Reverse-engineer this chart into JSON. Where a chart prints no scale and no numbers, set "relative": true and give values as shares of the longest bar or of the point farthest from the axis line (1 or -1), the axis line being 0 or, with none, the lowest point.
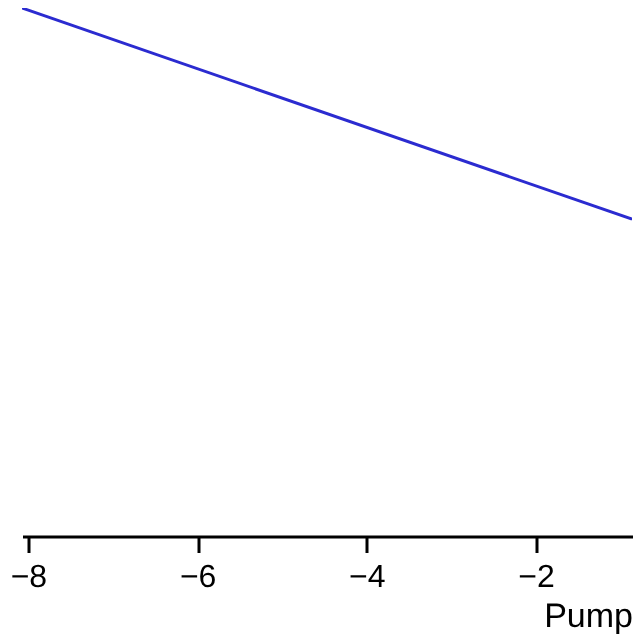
{
  "chart_data": {
    "type": "line",
    "relative": true,
    "xlabel": "Pump",
    "x": [
      -8.07,
      -0.86
    ],
    "series": [
      {
        "color": "#2b2bd0",
        "values": [
          1,
          0.6
        ]
      }
    ],
    "xlim": [
      -8.07,
      -0.86
    ],
    "xticks": [
      -8,
      -6,
      -4,
      -2
    ],
    "grid": false,
    "legend": false,
    "marker": "none",
    "line_style": "solid"
  }
}
